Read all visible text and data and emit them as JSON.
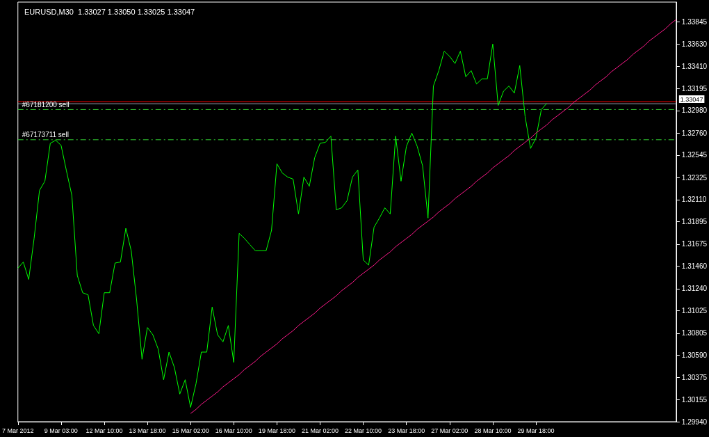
{
  "chart_data": {
    "type": "line",
    "title": "EURUSD,M30  1.33027 1.33050 1.33025 1.33047",
    "categories": [
      "7 Mar 2012",
      null,
      null,
      null,
      null,
      null,
      null,
      null,
      "9 Mar 03:00",
      null,
      null,
      null,
      null,
      null,
      null,
      null,
      "12 Mar 10:00",
      null,
      null,
      null,
      null,
      null,
      null,
      null,
      "13 Mar 18:00",
      null,
      null,
      null,
      null,
      null,
      null,
      null,
      "15 Mar 02:00",
      null,
      null,
      null,
      null,
      null,
      null,
      null,
      "16 Mar 10:00",
      null,
      null,
      null,
      null,
      null,
      null,
      null,
      "19 Mar 18:00",
      null,
      null,
      null,
      null,
      null,
      null,
      null,
      "21 Mar 02:00",
      null,
      null,
      null,
      null,
      null,
      null,
      null,
      "22 Mar 10:00",
      null,
      null,
      null,
      null,
      null,
      null,
      null,
      "23 Mar 18:00",
      null,
      null,
      null,
      null,
      null,
      null,
      null,
      "27 Mar 02:00",
      null,
      null,
      null,
      null,
      null,
      null,
      null,
      "28 Mar 10:00",
      null,
      null,
      null,
      null,
      null,
      null,
      null,
      "29 Mar 18:00",
      null,
      null,
      null,
      null,
      null,
      null,
      null,
      null,
      null,
      null,
      null,
      null,
      null,
      null,
      null,
      null,
      null,
      null,
      null,
      null,
      null,
      null,
      null,
      null,
      null,
      null
    ],
    "ylim": [
      1.2994,
      1.3404
    ],
    "yticks": [
      {
        "value": 1.2994,
        "label": "1.29940"
      },
      {
        "value": 1.30155,
        "label": "1.30155"
      },
      {
        "value": 1.30375,
        "label": "1.30375"
      },
      {
        "value": 1.3059,
        "label": "1.30590"
      },
      {
        "value": 1.30805,
        "label": "1.30805"
      },
      {
        "value": 1.31025,
        "label": "1.31025"
      },
      {
        "value": 1.3124,
        "label": "1.31240"
      },
      {
        "value": 1.3146,
        "label": "1.31460"
      },
      {
        "value": 1.31675,
        "label": "1.31675"
      },
      {
        "value": 1.31895,
        "label": "1.31895"
      },
      {
        "value": 1.3211,
        "label": "1.32110"
      },
      {
        "value": 1.32325,
        "label": "1.32325"
      },
      {
        "value": 1.32545,
        "label": "1.32545"
      },
      {
        "value": 1.3276,
        "label": "1.32760"
      },
      {
        "value": 1.3298,
        "label": "1.32980"
      },
      {
        "value": 1.33195,
        "label": "1.33195"
      },
      {
        "value": 1.3341,
        "label": "1.33410"
      },
      {
        "value": 1.3363,
        "label": "1.33630"
      },
      {
        "value": 1.33845,
        "label": "1.33845"
      }
    ],
    "marker": "none",
    "series": [
      {
        "color": "#00ff00",
        "line_style": "solid",
        "values": [
          1.3144,
          1.315,
          1.3133,
          1.3173,
          1.322,
          1.3229,
          1.3266,
          1.3269,
          1.3264,
          1.3239,
          1.3215,
          1.3137,
          1.312,
          1.3118,
          1.3088,
          1.308,
          1.312,
          1.312,
          1.3149,
          1.315,
          1.3183,
          1.3161,
          1.3113,
          1.3055,
          1.3086,
          1.3079,
          1.3065,
          1.3035,
          1.3062,
          1.3047,
          1.3021,
          1.3035,
          1.3008,
          1.3031,
          1.3062,
          1.3062,
          1.3106,
          1.3079,
          1.3072,
          1.3088,
          1.3052,
          1.3178,
          1.3173,
          1.3167,
          1.3161,
          1.3161,
          1.3161,
          1.3181,
          1.3246,
          1.3237,
          1.3233,
          1.3231,
          1.3197,
          1.3233,
          1.3224,
          1.3252,
          1.3266,
          1.3267,
          1.3273,
          1.3201,
          1.3203,
          1.321,
          1.3233,
          1.324,
          1.3152,
          1.3147,
          1.3184,
          1.3193,
          1.3203,
          1.3197,
          1.3273,
          1.3229,
          1.3263,
          1.3276,
          1.3263,
          1.3244,
          1.3193,
          1.3322,
          1.3337,
          1.3356,
          1.3351,
          1.3344,
          1.3356,
          1.3331,
          1.3337,
          1.3324,
          1.3329,
          1.3329,
          1.3363,
          1.3303,
          1.3317,
          1.3322,
          1.3315,
          1.3342,
          1.3292,
          1.3261,
          1.3271,
          1.3299,
          1.3305,
          null,
          null,
          null,
          null,
          null,
          null,
          null,
          null,
          null,
          null,
          null,
          null,
          null,
          null,
          null,
          null,
          null,
          null,
          null,
          null,
          null,
          null,
          null,
          null
        ]
      },
      {
        "color": "#ff1a8c",
        "line_style": "solid",
        "values": [
          null,
          null,
          null,
          null,
          null,
          null,
          null,
          null,
          null,
          null,
          null,
          null,
          null,
          null,
          null,
          null,
          null,
          null,
          null,
          null,
          null,
          null,
          null,
          null,
          null,
          null,
          null,
          null,
          null,
          null,
          null,
          null,
          1.3002,
          1.3006,
          1.3011,
          1.3015,
          1.3019,
          1.3023,
          1.3028,
          1.3032,
          1.3036,
          1.304,
          1.3045,
          1.3049,
          1.3053,
          1.3058,
          1.3062,
          1.3066,
          1.307,
          1.3075,
          1.3079,
          1.3083,
          1.3088,
          1.3092,
          1.3096,
          1.31,
          1.3105,
          1.3109,
          1.3113,
          1.3117,
          1.3122,
          1.3126,
          1.313,
          1.3135,
          1.3139,
          1.3143,
          1.3147,
          1.3152,
          1.3156,
          1.316,
          1.3165,
          1.3169,
          1.3173,
          1.3177,
          1.3182,
          1.3186,
          1.319,
          1.3194,
          1.3199,
          1.3203,
          1.3207,
          1.3212,
          1.3216,
          1.322,
          1.3224,
          1.3229,
          1.3233,
          1.3237,
          1.3242,
          1.3246,
          1.325,
          1.3254,
          1.3259,
          1.3263,
          1.3267,
          1.3271,
          1.3276,
          1.328,
          1.3284,
          1.3289,
          1.3293,
          1.3297,
          1.3301,
          1.3306,
          1.331,
          1.3314,
          1.3318,
          1.3323,
          1.3327,
          1.3331,
          1.3336,
          1.334,
          1.3344,
          1.3348,
          1.3353,
          1.3357,
          1.3361,
          1.3366,
          1.337,
          1.3374,
          1.3378,
          1.3383,
          1.3387
        ]
      }
    ],
    "ref_lines": [
      {
        "axis": "y",
        "value": 1.33067,
        "color": "#ff0000",
        "line_style": "solid"
      },
      {
        "axis": "y",
        "value": 1.33047,
        "label": "1.33047",
        "color": "#8c97a6",
        "line_style": "solid"
      },
      {
        "axis": "y",
        "value": 1.3299,
        "label": "#67181200 sell",
        "color": "#32cd32",
        "line_style": "dashed"
      },
      {
        "axis": "y",
        "value": 1.32695,
        "label": "#67173711 sell",
        "color": "#32cd32",
        "line_style": "dashed"
      }
    ]
  }
}
